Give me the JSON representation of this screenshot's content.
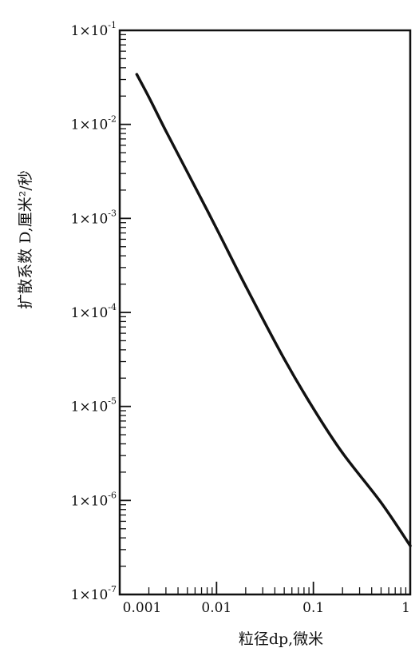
{
  "chart_data": {
    "type": "line",
    "xlabel": "粒径dp,微米",
    "ylabel": "扩散系数 D,厘米²/秒",
    "x_scale": "log",
    "y_scale": "log",
    "xlim": [
      0.001,
      1
    ],
    "ylim": [
      1e-07,
      0.1
    ],
    "grid": false,
    "x_ticks": [
      {
        "value": 0.001,
        "label": "0.001"
      },
      {
        "value": 0.01,
        "label": "0.01"
      },
      {
        "value": 0.1,
        "label": "0.1"
      },
      {
        "value": 1,
        "label": "1"
      }
    ],
    "y_ticks": [
      {
        "value": 1e-07,
        "mantissa": "1×10",
        "exponent": "-7"
      },
      {
        "value": 1e-06,
        "mantissa": "1×10",
        "exponent": "-6"
      },
      {
        "value": 1e-05,
        "mantissa": "1×10",
        "exponent": "-5"
      },
      {
        "value": 0.0001,
        "mantissa": "1×10",
        "exponent": "-4"
      },
      {
        "value": 0.001,
        "mantissa": "1×10",
        "exponent": "-3"
      },
      {
        "value": 0.01,
        "mantissa": "1×10",
        "exponent": "-2"
      },
      {
        "value": 0.1,
        "mantissa": "1×10",
        "exponent": "-1"
      }
    ],
    "series": [
      {
        "color": "#111111",
        "x": [
          0.0015,
          0.002,
          0.003,
          0.005,
          0.01,
          0.02,
          0.05,
          0.1,
          0.2,
          0.5,
          1.0
        ],
        "y": [
          0.034,
          0.0195,
          0.0085,
          0.0031,
          0.00078,
          0.00019,
          3.2e-05,
          9.5e-06,
          3.2e-06,
          9.5e-07,
          3.3e-07
        ]
      }
    ]
  }
}
